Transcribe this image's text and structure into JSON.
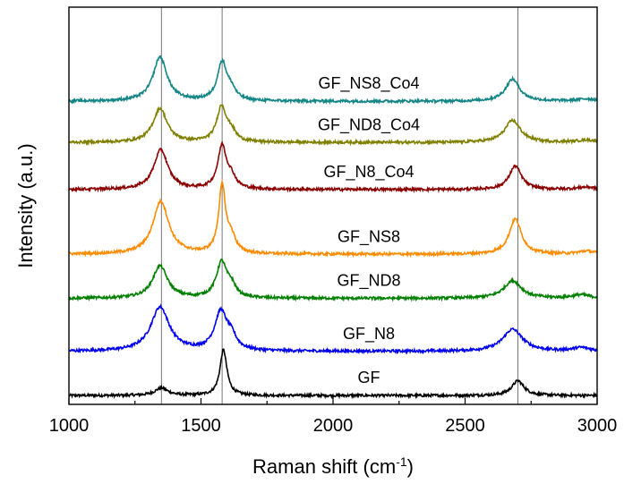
{
  "chart_data": {
    "type": "line",
    "title": "",
    "xlabel": "Raman shift (cm",
    "xlabel_sup": "-1",
    "xlabel_suffix": ")",
    "ylabel": "Intensity (a.u.)",
    "xlim": [
      1000,
      3000
    ],
    "x_ticks": [
      1000,
      1500,
      2000,
      2500,
      3000
    ],
    "x_tick_labels": [
      "1000",
      "1500",
      "2000",
      "2500",
      "3000"
    ],
    "y_ticks_shown": false,
    "grid": false,
    "reference_lines_x": [
      1350,
      1580,
      2700
    ],
    "series": [
      {
        "name": "GF",
        "color": "#000000",
        "offset": 0,
        "peaks": [
          {
            "pos": 1350,
            "height": 0.25,
            "width": 30
          },
          {
            "pos": 1585,
            "height": 1.55,
            "width": 16
          },
          {
            "pos": 2700,
            "height": 0.5,
            "width": 28
          }
        ]
      },
      {
        "name": "GF_N8",
        "color": "#0000ee",
        "offset": 1.5,
        "peaks": [
          {
            "pos": 1345,
            "height": 1.5,
            "width": 42
          },
          {
            "pos": 1575,
            "height": 1.3,
            "width": 28
          },
          {
            "pos": 1615,
            "height": 0.4,
            "width": 22
          },
          {
            "pos": 2680,
            "height": 0.75,
            "width": 45
          },
          {
            "pos": 2940,
            "height": 0.12,
            "width": 40
          }
        ]
      },
      {
        "name": "GF_ND8",
        "color": "#008000",
        "offset": 3.3,
        "peaks": [
          {
            "pos": 1345,
            "height": 1.1,
            "width": 34
          },
          {
            "pos": 1578,
            "height": 1.2,
            "width": 24
          },
          {
            "pos": 1615,
            "height": 0.35,
            "width": 20
          },
          {
            "pos": 2680,
            "height": 0.6,
            "width": 40
          },
          {
            "pos": 2940,
            "height": 0.12,
            "width": 40
          }
        ]
      },
      {
        "name": "GF_NS8",
        "color": "#ff8c00",
        "offset": 4.8,
        "peaks": [
          {
            "pos": 1348,
            "height": 1.8,
            "width": 36
          },
          {
            "pos": 1580,
            "height": 2.25,
            "width": 16
          },
          {
            "pos": 1615,
            "height": 0.5,
            "width": 20
          },
          {
            "pos": 2690,
            "height": 1.2,
            "width": 28
          },
          {
            "pos": 2960,
            "height": 0.1,
            "width": 40
          }
        ]
      },
      {
        "name": "GF_N8_Co4",
        "color": "#8b0000",
        "offset": 7.0,
        "peaks": [
          {
            "pos": 1348,
            "height": 1.35,
            "width": 32
          },
          {
            "pos": 1580,
            "height": 1.45,
            "width": 20
          },
          {
            "pos": 1615,
            "height": 0.35,
            "width": 20
          },
          {
            "pos": 2690,
            "height": 0.8,
            "width": 28
          },
          {
            "pos": 2960,
            "height": 0.08,
            "width": 40
          }
        ]
      },
      {
        "name": "GF_ND8_Co4",
        "color": "#808000",
        "offset": 8.6,
        "peaks": [
          {
            "pos": 1345,
            "height": 1.15,
            "width": 32
          },
          {
            "pos": 1578,
            "height": 1.2,
            "width": 22
          },
          {
            "pos": 1615,
            "height": 0.3,
            "width": 20
          },
          {
            "pos": 2680,
            "height": 0.75,
            "width": 36
          },
          {
            "pos": 2960,
            "height": 0.08,
            "width": 40
          }
        ]
      },
      {
        "name": "GF_NS8_Co4",
        "color": "#138585",
        "offset": 10.0,
        "peaks": [
          {
            "pos": 1345,
            "height": 1.5,
            "width": 32
          },
          {
            "pos": 1580,
            "height": 1.3,
            "width": 22
          },
          {
            "pos": 1615,
            "height": 0.3,
            "width": 20
          },
          {
            "pos": 2680,
            "height": 0.75,
            "width": 32
          },
          {
            "pos": 2960,
            "height": 0.08,
            "width": 40
          }
        ]
      }
    ]
  }
}
